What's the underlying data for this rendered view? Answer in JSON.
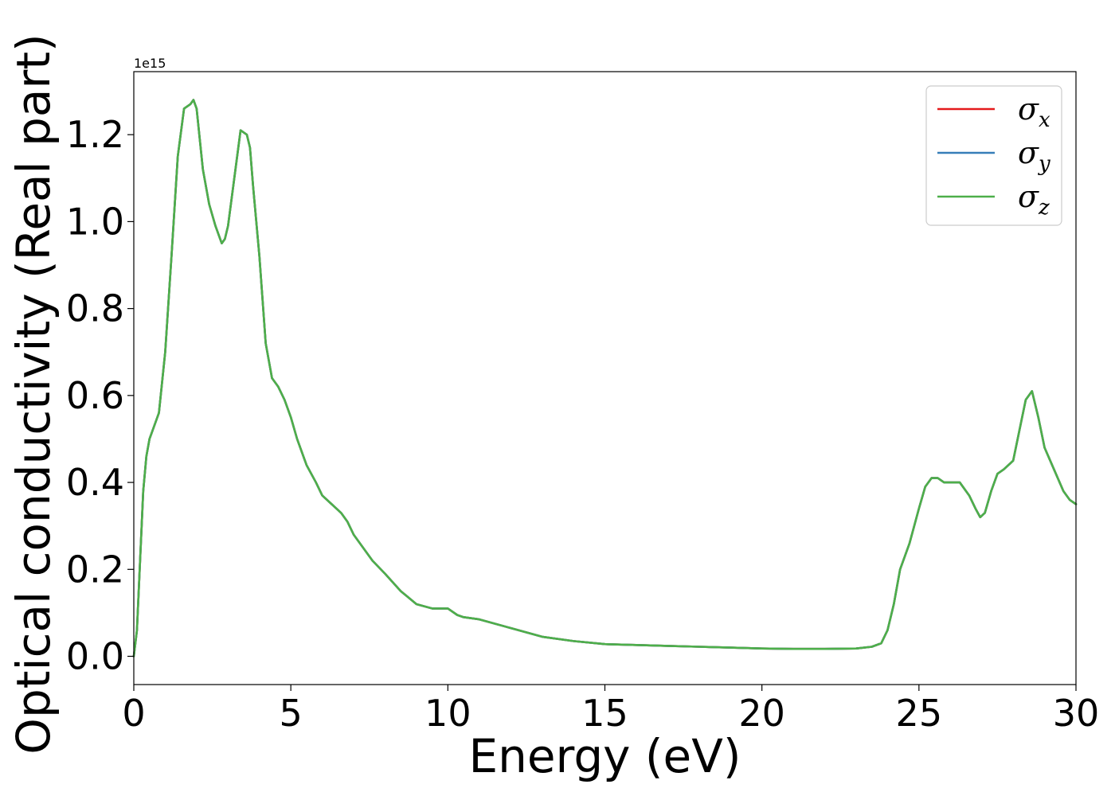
{
  "chart_data": {
    "type": "line",
    "title": "",
    "xlabel": "Energy (eV)",
    "ylabel": "Optical conductivity (Real part)",
    "y_offset_label": "1e15",
    "y_scale_factor": 1000000000000000.0,
    "xlim": [
      0,
      30
    ],
    "ylim": [
      -0.065,
      1.345
    ],
    "x_ticks": [
      0,
      5,
      10,
      15,
      20,
      25,
      30
    ],
    "x_tick_labels": [
      "0",
      "5",
      "10",
      "15",
      "20",
      "25",
      "30"
    ],
    "y_ticks": [
      0.0,
      0.2,
      0.4,
      0.6,
      0.8,
      1.0,
      1.2
    ],
    "y_tick_labels": [
      "0.0",
      "0.2",
      "0.4",
      "0.6",
      "0.8",
      "1.0",
      "1.2"
    ],
    "grid": false,
    "legend_position": "top-right",
    "x": [
      0,
      0.1,
      0.2,
      0.3,
      0.4,
      0.5,
      0.6,
      0.8,
      1.0,
      1.2,
      1.4,
      1.6,
      1.8,
      1.9,
      2.0,
      2.2,
      2.4,
      2.6,
      2.8,
      2.9,
      3.0,
      3.2,
      3.4,
      3.6,
      3.7,
      3.8,
      4.0,
      4.2,
      4.4,
      4.6,
      4.8,
      5.0,
      5.2,
      5.5,
      5.8,
      6.0,
      6.3,
      6.6,
      6.8,
      7.0,
      7.3,
      7.6,
      8.0,
      8.5,
      9.0,
      9.5,
      10.0,
      10.3,
      10.5,
      11.0,
      12.0,
      13.0,
      14.0,
      15.0,
      16.0,
      17.0,
      18.0,
      19.0,
      20.0,
      21.0,
      22.0,
      23.0,
      23.5,
      23.8,
      24.0,
      24.2,
      24.4,
      24.7,
      25.0,
      25.2,
      25.4,
      25.6,
      25.8,
      26.0,
      26.3,
      26.6,
      26.8,
      26.95,
      27.1,
      27.3,
      27.5,
      27.7,
      28.0,
      28.2,
      28.4,
      28.6,
      28.8,
      29.0,
      29.3,
      29.6,
      29.8,
      30.0
    ],
    "series": [
      {
        "name": "σx",
        "label_base": "σ",
        "label_sub": "x",
        "color": "#e41a1c",
        "values": [
          0.0,
          0.06,
          0.22,
          0.38,
          0.46,
          0.5,
          0.52,
          0.56,
          0.7,
          0.92,
          1.15,
          1.26,
          1.27,
          1.28,
          1.26,
          1.12,
          1.04,
          0.99,
          0.95,
          0.96,
          0.99,
          1.1,
          1.21,
          1.2,
          1.17,
          1.08,
          0.92,
          0.72,
          0.64,
          0.62,
          0.59,
          0.55,
          0.5,
          0.44,
          0.4,
          0.37,
          0.35,
          0.33,
          0.31,
          0.28,
          0.25,
          0.22,
          0.19,
          0.15,
          0.12,
          0.11,
          0.11,
          0.095,
          0.09,
          0.085,
          0.065,
          0.045,
          0.035,
          0.028,
          0.026,
          0.024,
          0.022,
          0.02,
          0.018,
          0.017,
          0.017,
          0.018,
          0.022,
          0.03,
          0.06,
          0.12,
          0.2,
          0.26,
          0.34,
          0.39,
          0.41,
          0.41,
          0.4,
          0.4,
          0.4,
          0.37,
          0.34,
          0.32,
          0.33,
          0.38,
          0.42,
          0.43,
          0.45,
          0.52,
          0.59,
          0.61,
          0.55,
          0.48,
          0.43,
          0.38,
          0.36,
          0.35
        ]
      },
      {
        "name": "σy",
        "label_base": "σ",
        "label_sub": "y",
        "color": "#377eb8",
        "values": [
          0.0,
          0.06,
          0.22,
          0.38,
          0.46,
          0.5,
          0.52,
          0.56,
          0.7,
          0.92,
          1.15,
          1.26,
          1.27,
          1.28,
          1.26,
          1.12,
          1.04,
          0.99,
          0.95,
          0.96,
          0.99,
          1.1,
          1.21,
          1.2,
          1.17,
          1.08,
          0.92,
          0.72,
          0.64,
          0.62,
          0.59,
          0.55,
          0.5,
          0.44,
          0.4,
          0.37,
          0.35,
          0.33,
          0.31,
          0.28,
          0.25,
          0.22,
          0.19,
          0.15,
          0.12,
          0.11,
          0.11,
          0.095,
          0.09,
          0.085,
          0.065,
          0.045,
          0.035,
          0.028,
          0.026,
          0.024,
          0.022,
          0.02,
          0.018,
          0.017,
          0.017,
          0.018,
          0.022,
          0.03,
          0.06,
          0.12,
          0.2,
          0.26,
          0.34,
          0.39,
          0.41,
          0.41,
          0.4,
          0.4,
          0.4,
          0.37,
          0.34,
          0.32,
          0.33,
          0.38,
          0.42,
          0.43,
          0.45,
          0.52,
          0.59,
          0.61,
          0.55,
          0.48,
          0.43,
          0.38,
          0.36,
          0.35
        ]
      },
      {
        "name": "σz",
        "label_base": "σ",
        "label_sub": "z",
        "color": "#4daf4a",
        "values": [
          0.0,
          0.06,
          0.22,
          0.38,
          0.46,
          0.5,
          0.52,
          0.56,
          0.7,
          0.92,
          1.15,
          1.26,
          1.27,
          1.28,
          1.26,
          1.12,
          1.04,
          0.99,
          0.95,
          0.96,
          0.99,
          1.1,
          1.21,
          1.2,
          1.17,
          1.08,
          0.92,
          0.72,
          0.64,
          0.62,
          0.59,
          0.55,
          0.5,
          0.44,
          0.4,
          0.37,
          0.35,
          0.33,
          0.31,
          0.28,
          0.25,
          0.22,
          0.19,
          0.15,
          0.12,
          0.11,
          0.11,
          0.095,
          0.09,
          0.085,
          0.065,
          0.045,
          0.035,
          0.028,
          0.026,
          0.024,
          0.022,
          0.02,
          0.018,
          0.017,
          0.017,
          0.018,
          0.022,
          0.03,
          0.06,
          0.12,
          0.2,
          0.26,
          0.34,
          0.39,
          0.41,
          0.41,
          0.4,
          0.4,
          0.4,
          0.37,
          0.34,
          0.32,
          0.33,
          0.38,
          0.42,
          0.43,
          0.45,
          0.52,
          0.59,
          0.61,
          0.55,
          0.48,
          0.43,
          0.38,
          0.36,
          0.35
        ]
      }
    ]
  }
}
